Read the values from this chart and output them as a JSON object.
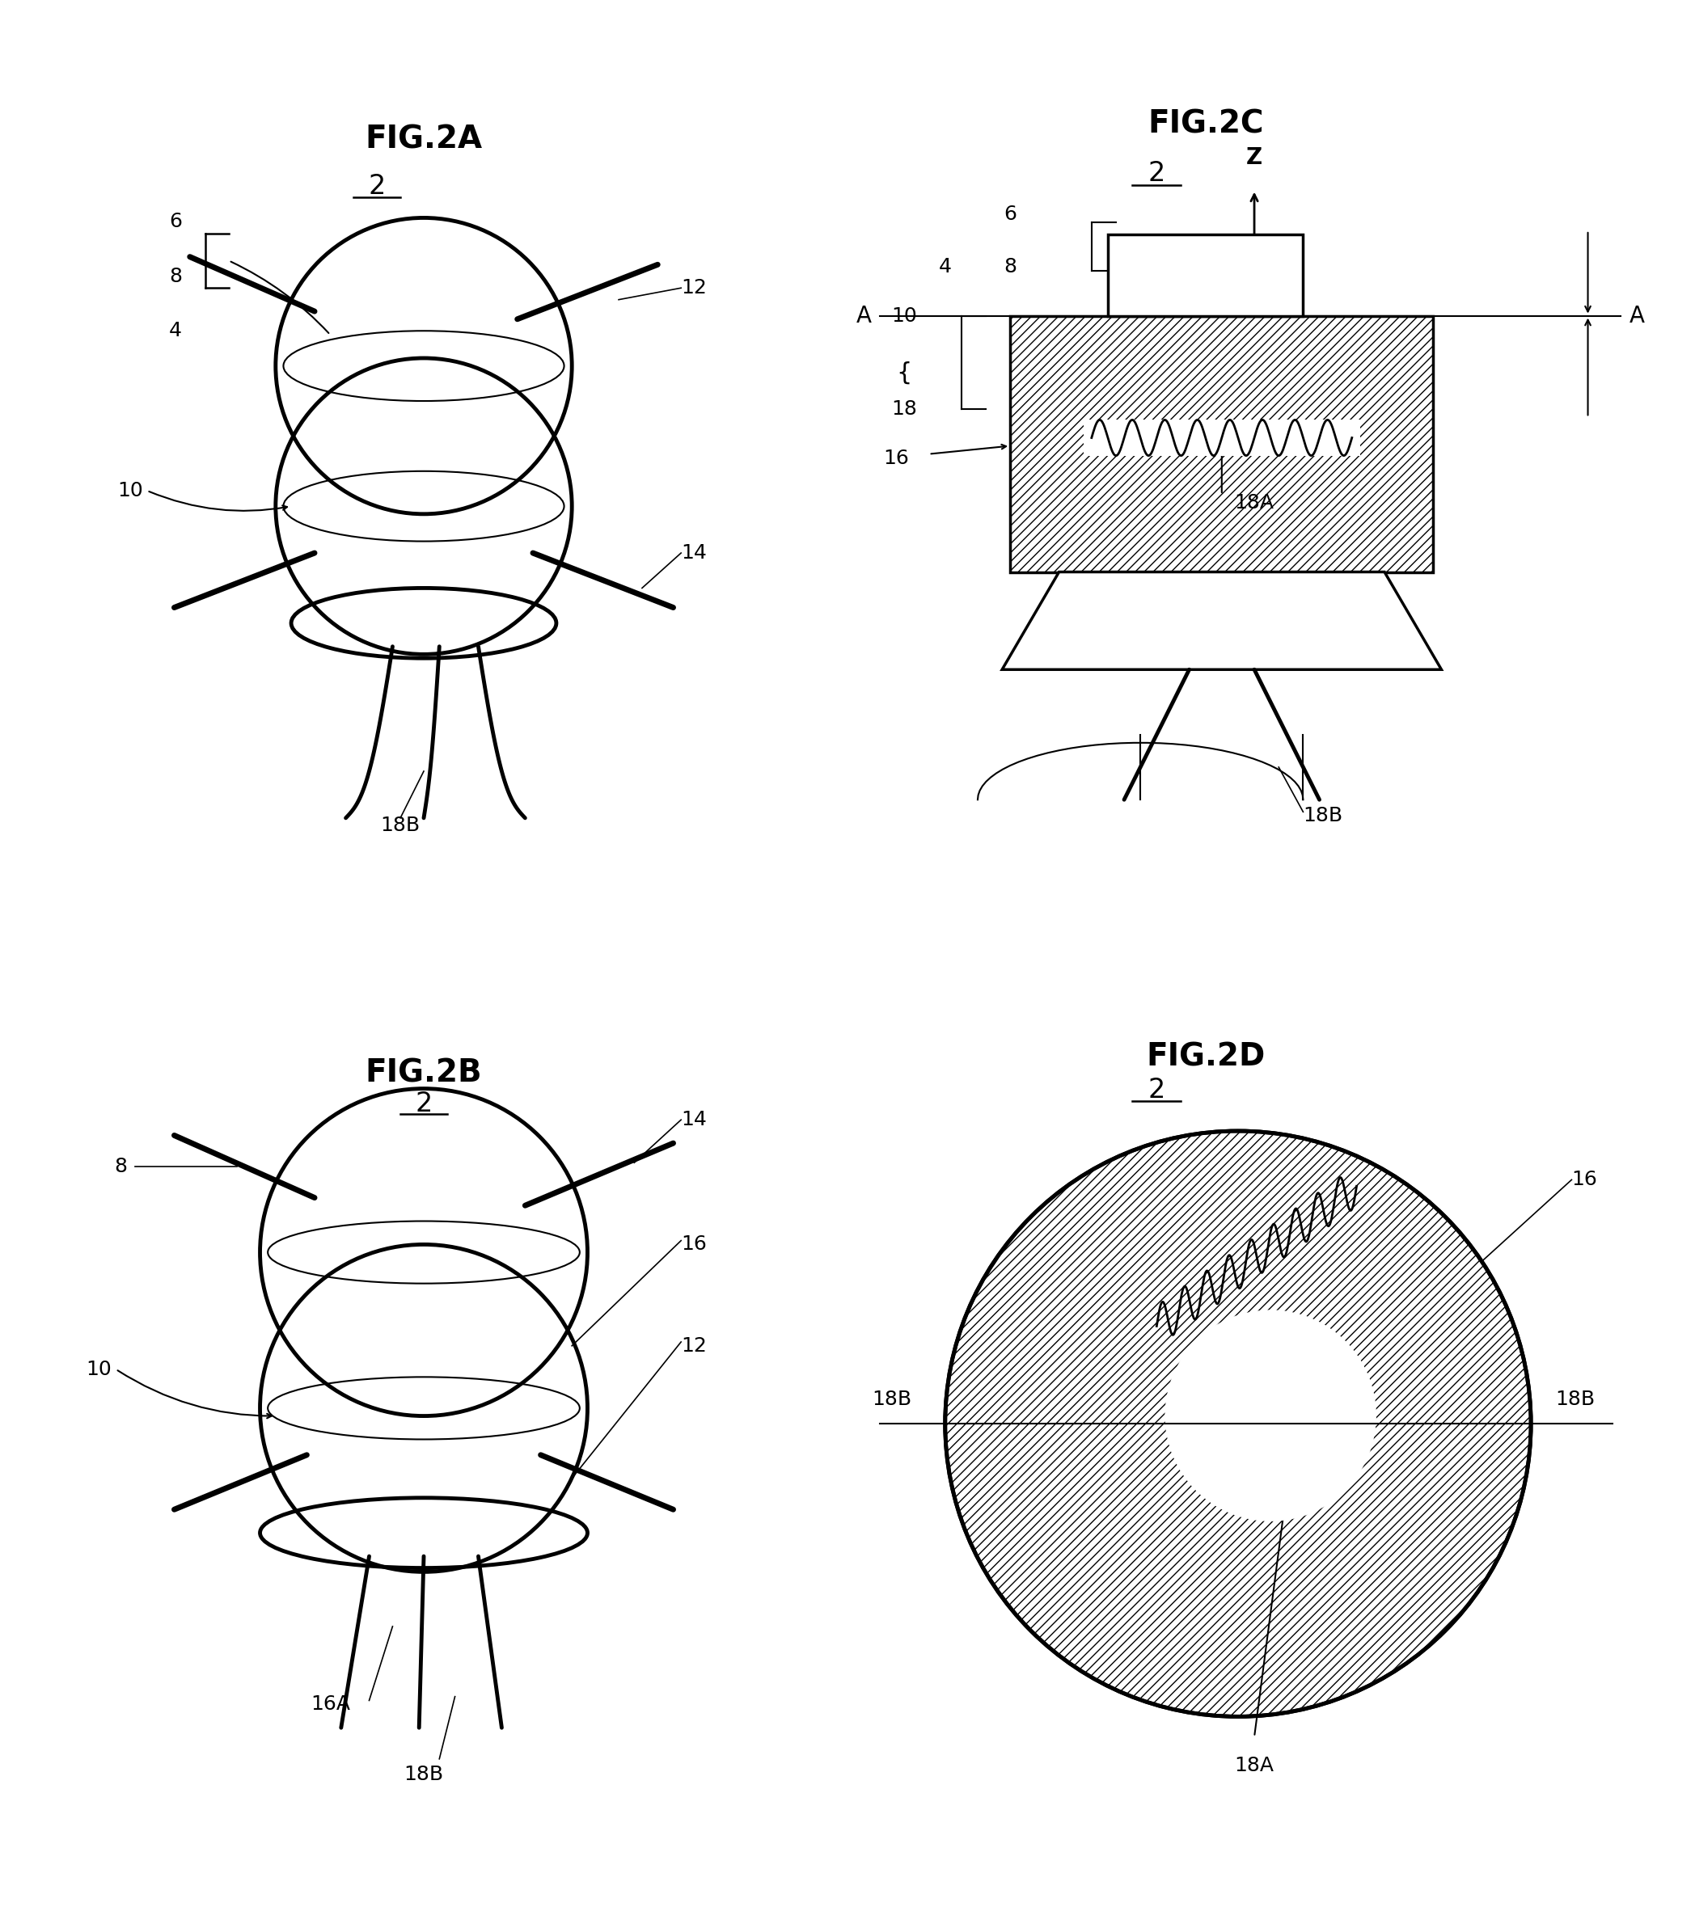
{
  "bg_color": "#ffffff",
  "line_color": "#000000",
  "fig_titles": [
    "FIG.2A",
    "FIG.2B",
    "FIG.2C",
    "FIG.2D"
  ],
  "font_size_title": 28,
  "font_size_label": 22,
  "font_size_ref": 18
}
